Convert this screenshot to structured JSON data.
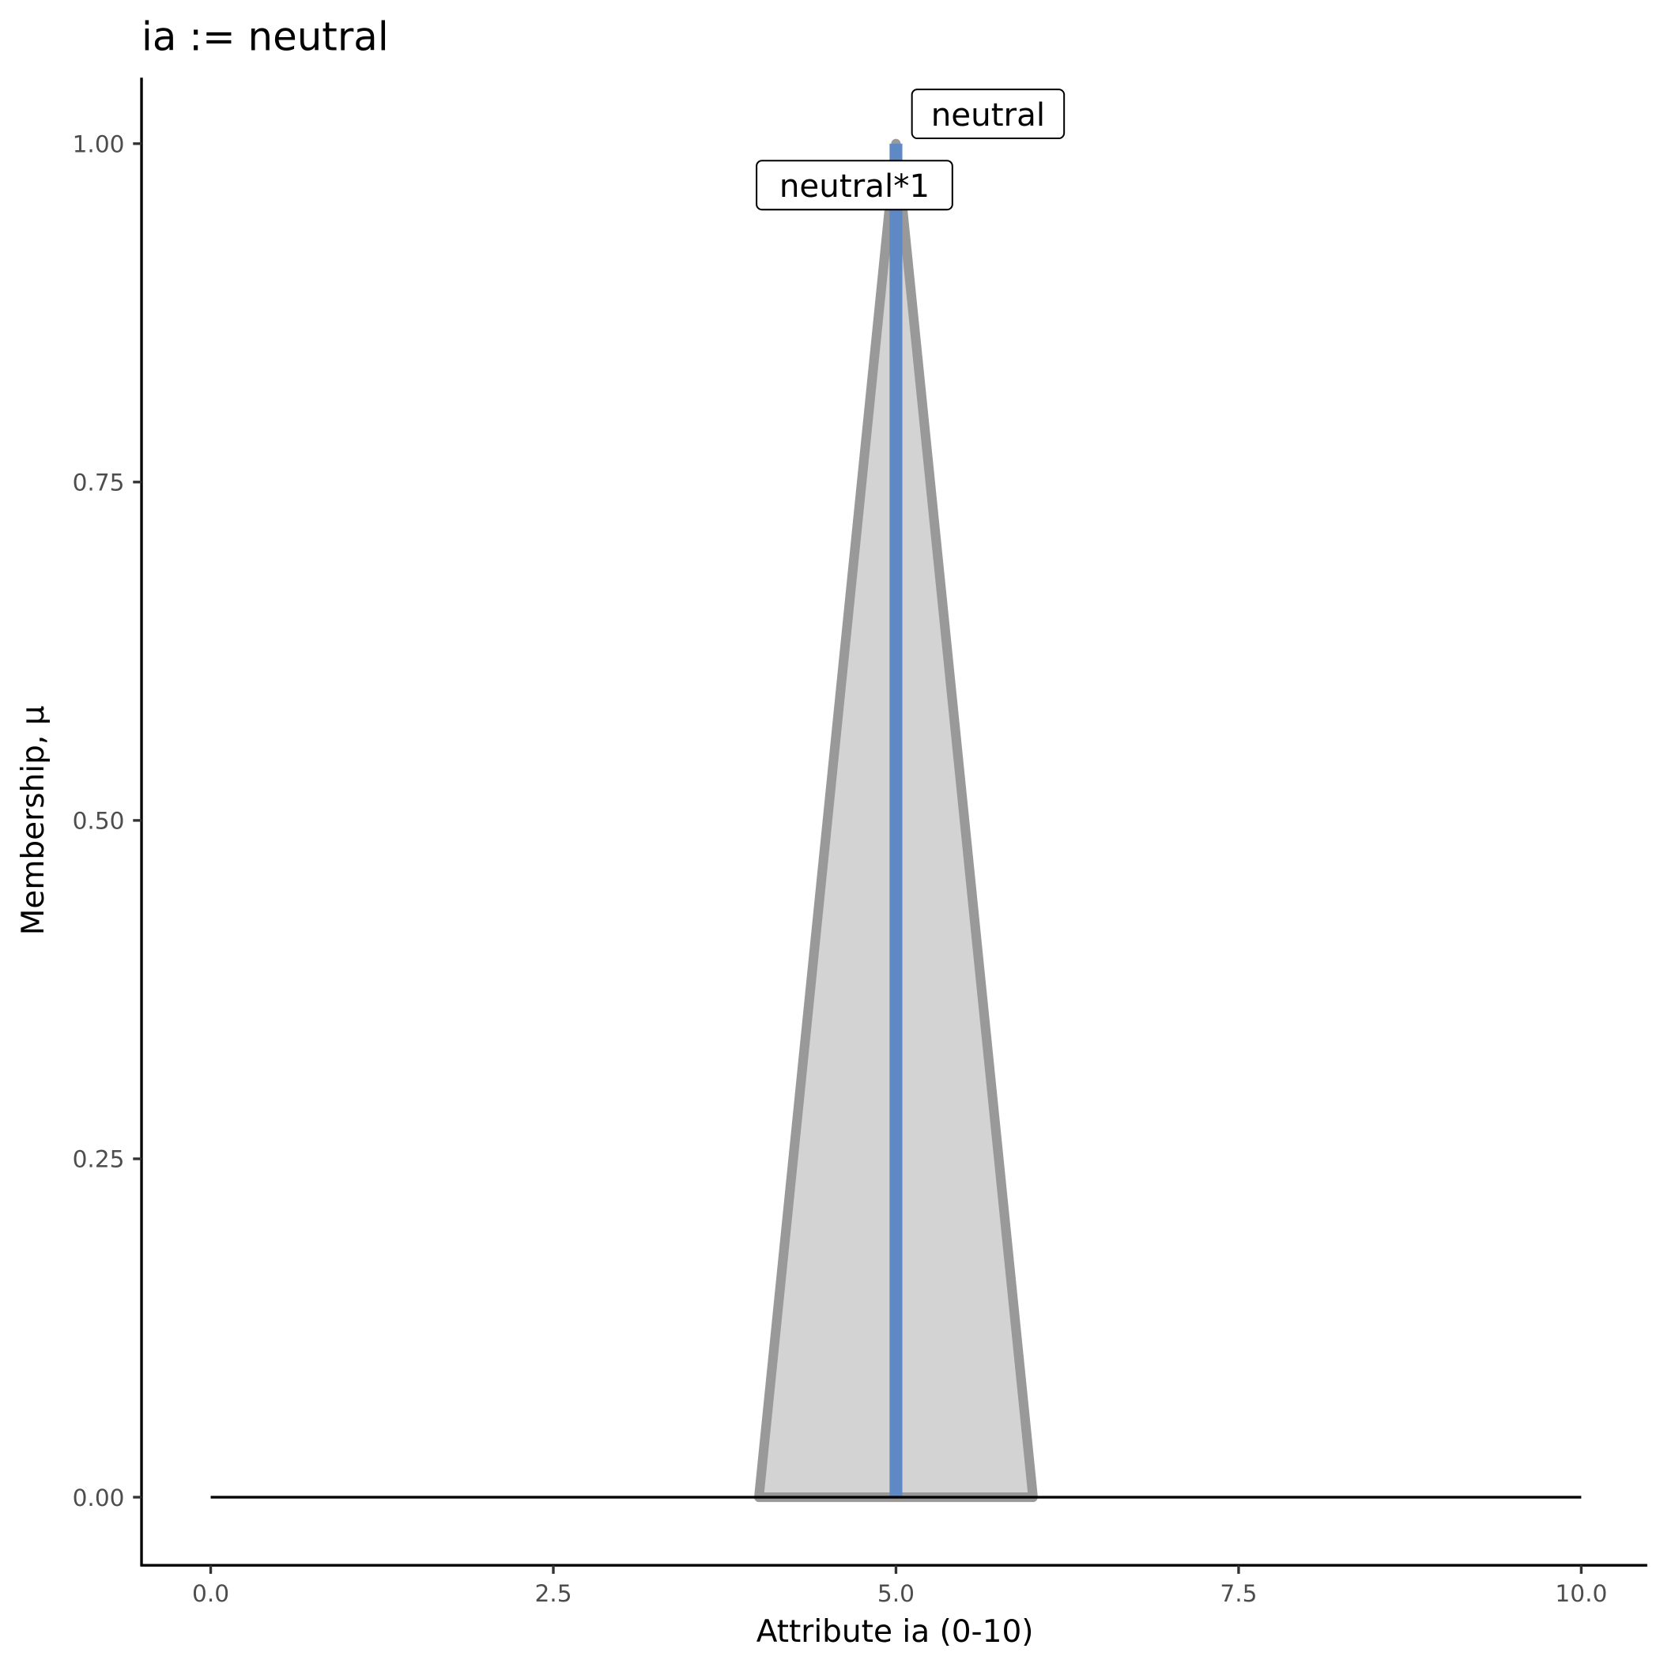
{
  "chart_data": {
    "type": "area",
    "title": "ia := neutral",
    "xlabel": "Attribute ia (0-10)",
    "ylabel": "Membership, μ",
    "xlim": [
      -0.5,
      10.5
    ],
    "ylim": [
      -0.05,
      1.05
    ],
    "x_ticks": [
      "0.0",
      "2.5",
      "5.0",
      "7.5",
      "10.0"
    ],
    "y_ticks": [
      "0.00",
      "0.25",
      "0.50",
      "0.75",
      "1.00"
    ],
    "grid": false,
    "series": [
      {
        "name": "neutral",
        "kind": "triangle",
        "points": [
          [
            4,
            0
          ],
          [
            5,
            1
          ],
          [
            6,
            0
          ]
        ],
        "fill": "#d3d3d3",
        "stroke": "#999999"
      },
      {
        "name": "neutral*1",
        "kind": "segment",
        "points": [
          [
            5,
            0
          ],
          [
            5,
            1
          ]
        ],
        "stroke": "#5f89c4"
      },
      {
        "kind": "baseline",
        "points": [
          [
            0,
            0
          ],
          [
            10,
            0
          ]
        ],
        "stroke": "#000000"
      }
    ],
    "annotations": [
      {
        "text": "neutral",
        "x": 5,
        "y": 1
      },
      {
        "text": "neutral*1",
        "x": 5,
        "y": 1
      }
    ]
  }
}
